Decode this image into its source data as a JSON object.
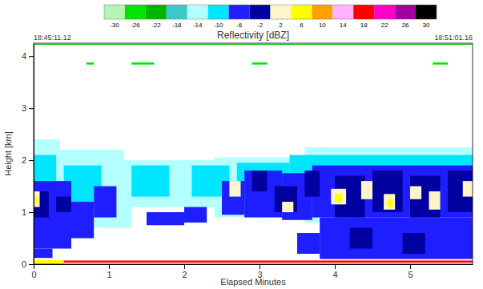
{
  "chart_data": {
    "type": "heatmap",
    "title": "Reflectivity [dBZ]",
    "annotations": [
      "18:45:11.12",
      "18:51:01.16"
    ],
    "xlabel": "Elapsed Minutes",
    "ylabel": "Height [km]",
    "xlim": [
      0,
      5.83
    ],
    "xticks": [
      0,
      1,
      2,
      3,
      4,
      5
    ],
    "ylim": [
      0,
      4.25
    ],
    "yticks": [
      0,
      1,
      2,
      3,
      4
    ],
    "cells": [
      [
        0,
        0.35,
        0.9,
        2.4,
        -14
      ],
      [
        0.35,
        1.2,
        1.1,
        2.2,
        -14
      ],
      [
        1.2,
        2.4,
        1.1,
        2.0,
        -14
      ],
      [
        2.4,
        3.6,
        0.9,
        2.05,
        -14
      ],
      [
        3.6,
        5.83,
        0.8,
        2.25,
        -14
      ],
      [
        0.8,
        1.3,
        0.7,
        1.1,
        -14
      ],
      [
        0,
        0.3,
        1.4,
        2.1,
        -10
      ],
      [
        0.4,
        0.9,
        1.2,
        1.9,
        -10
      ],
      [
        1.3,
        1.8,
        1.3,
        1.9,
        -10
      ],
      [
        2.1,
        2.6,
        1.3,
        1.9,
        -10
      ],
      [
        2.7,
        3.4,
        1.2,
        1.95,
        -10
      ],
      [
        3.4,
        5.83,
        1.0,
        2.1,
        -10
      ],
      [
        0,
        0.5,
        0.3,
        1.6,
        -6
      ],
      [
        0.5,
        0.8,
        0.5,
        1.2,
        -6
      ],
      [
        0.8,
        1.1,
        0.9,
        1.5,
        -6
      ],
      [
        1.5,
        2.0,
        0.75,
        1.0,
        -6
      ],
      [
        2.0,
        2.3,
        0.8,
        1.1,
        -6
      ],
      [
        2.5,
        2.8,
        0.95,
        1.6,
        -6
      ],
      [
        2.8,
        3.3,
        0.9,
        1.8,
        -6
      ],
      [
        3.3,
        3.7,
        0.85,
        1.75,
        -6
      ],
      [
        3.7,
        5.83,
        0.9,
        1.9,
        -6
      ],
      [
        3.8,
        5.83,
        0.1,
        0.9,
        -6
      ],
      [
        3.5,
        3.8,
        0.2,
        0.6,
        -6
      ],
      [
        0,
        0.25,
        0.12,
        0.3,
        -6
      ],
      [
        0,
        0.2,
        0.9,
        1.4,
        -2
      ],
      [
        0.3,
        0.5,
        1.0,
        1.3,
        -2
      ],
      [
        2.9,
        3.1,
        1.4,
        1.8,
        -2
      ],
      [
        3.2,
        3.5,
        1.0,
        1.5,
        -2
      ],
      [
        3.6,
        3.8,
        1.3,
        1.8,
        -2
      ],
      [
        4.0,
        4.4,
        0.9,
        1.7,
        -2
      ],
      [
        4.5,
        4.9,
        1.0,
        1.8,
        -2
      ],
      [
        5.0,
        5.4,
        0.9,
        1.7,
        -2
      ],
      [
        5.5,
        5.83,
        1.0,
        1.8,
        -2
      ],
      [
        4.2,
        4.5,
        0.3,
        0.7,
        -2
      ],
      [
        4.9,
        5.2,
        0.2,
        0.6,
        -2
      ],
      [
        0,
        0.08,
        1.1,
        1.4,
        2
      ],
      [
        2.6,
        2.75,
        1.3,
        1.6,
        2
      ],
      [
        3.3,
        3.45,
        1.0,
        1.2,
        2
      ],
      [
        3.95,
        4.15,
        1.15,
        1.45,
        2
      ],
      [
        4.35,
        4.5,
        1.25,
        1.6,
        2
      ],
      [
        4.65,
        4.8,
        1.05,
        1.35,
        2
      ],
      [
        5.0,
        5.15,
        1.25,
        1.5,
        2
      ],
      [
        5.25,
        5.4,
        1.05,
        1.4,
        2
      ],
      [
        5.7,
        5.83,
        1.3,
        1.6,
        2
      ],
      [
        4.0,
        4.1,
        1.2,
        1.35,
        6
      ],
      [
        0.02,
        0.06,
        1.15,
        1.3,
        6
      ],
      [
        4.7,
        4.77,
        1.1,
        1.25,
        6
      ],
      [
        0,
        0.4,
        0.0,
        0.08,
        6
      ],
      [
        0.4,
        5.83,
        0.03,
        0.07,
        18
      ],
      [
        0.7,
        0.8,
        3.84,
        3.88,
        -26
      ],
      [
        1.3,
        1.6,
        3.84,
        3.88,
        -26
      ],
      [
        2.9,
        3.1,
        3.84,
        3.88,
        -26
      ],
      [
        5.3,
        5.5,
        3.84,
        3.88,
        -26
      ]
    ],
    "colorbar": {
      "range": [
        -32,
        32
      ],
      "ticks": [
        -30,
        -26,
        -22,
        -18,
        -14,
        -10,
        -6,
        -2,
        2,
        6,
        10,
        14,
        18,
        22,
        26,
        30
      ],
      "colors": [
        "#b4f5b4",
        "#00e600",
        "#00b400",
        "#3cc8c8",
        "#b4ffff",
        "#00e6ff",
        "#1e1eff",
        "#0000a0",
        "#fff5c8",
        "#ffff00",
        "#ffa000",
        "#ffb4ff",
        "#ff0000",
        "#ff00c8",
        "#a000a0",
        "#000000"
      ]
    }
  }
}
